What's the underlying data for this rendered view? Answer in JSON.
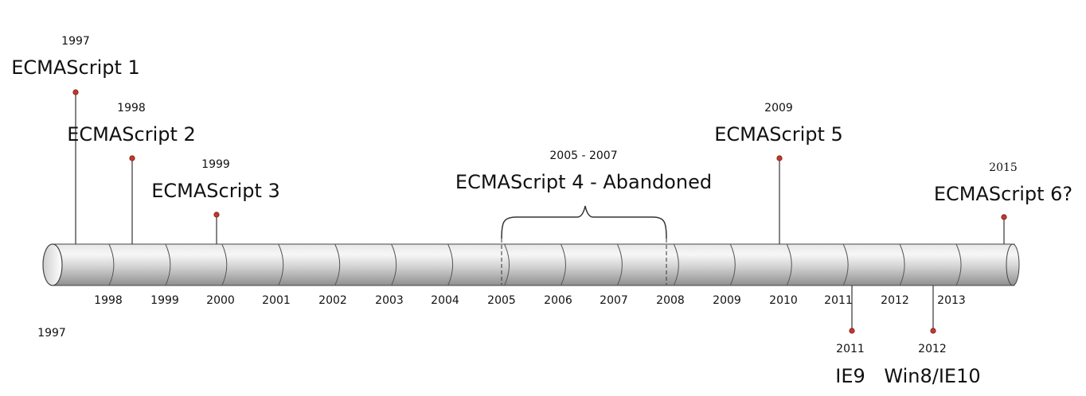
{
  "axis_start_label": "1997",
  "ticks": [
    "1998",
    "1999",
    "2000",
    "2001",
    "2002",
    "2003",
    "2004",
    "2005",
    "2006",
    "2007",
    "2008",
    "2009",
    "2010",
    "2011",
    "2012",
    "2013"
  ],
  "events_above": [
    {
      "year": "1997",
      "label": "ECMAScript 1"
    },
    {
      "year": "1998",
      "label": "ECMAScript 2"
    },
    {
      "year": "1999",
      "label": "ECMAScript 3"
    },
    {
      "year": "2009",
      "label": "ECMAScript 5"
    },
    {
      "year": "2015",
      "label": "ECMAScript 6?"
    }
  ],
  "range_event": {
    "years": "2005 - 2007",
    "label": "ECMAScript 4 - Abandoned"
  },
  "events_below": [
    {
      "year": "2011",
      "label": "IE9"
    },
    {
      "year": "2012",
      "label": "Win8/IE10"
    }
  ],
  "colors": {
    "marker": "#c0392b",
    "stem": "#333333",
    "cylinder_light": "#f2f2f2",
    "cylinder_dark": "#9a9a9a"
  }
}
